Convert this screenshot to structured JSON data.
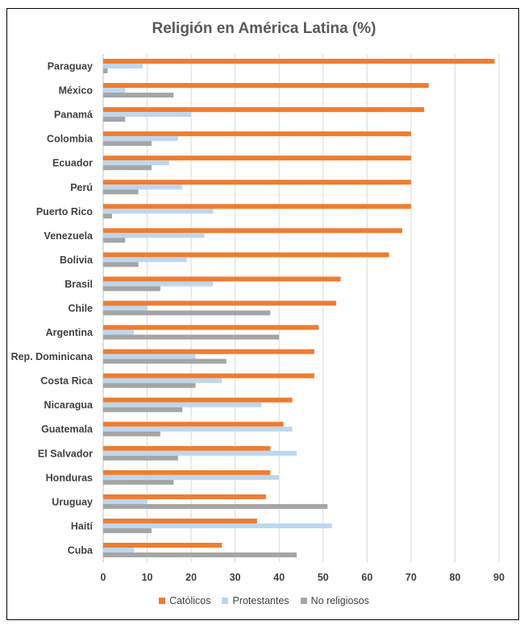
{
  "chart_data": {
    "type": "bar",
    "orientation": "horizontal",
    "title": "Religión en América Latina (%)",
    "xlabel": "",
    "ylabel": "",
    "xlim": [
      0,
      90
    ],
    "xticks": [
      0,
      10,
      20,
      30,
      40,
      50,
      60,
      70,
      80,
      90
    ],
    "grid": true,
    "legend_position": "bottom",
    "categories": [
      "Paraguay",
      "México",
      "Panamá",
      "Colombia",
      "Ecuador",
      "Perú",
      "Puerto Rico",
      "Venezuela",
      "Bolivia",
      "Brasil",
      "Chile",
      "Argentina",
      "Rep. Dominicana",
      "Costa Rica",
      "Nicaragua",
      "Guatemala",
      "El Salvador",
      "Honduras",
      "Uruguay",
      "Haití",
      "Cuba"
    ],
    "series": [
      {
        "name": "Católicos",
        "color": "#ed7d31",
        "values": [
          89,
          74,
          73,
          70,
          70,
          70,
          70,
          68,
          65,
          54,
          53,
          49,
          48,
          48,
          43,
          41,
          38,
          38,
          37,
          35,
          27
        ]
      },
      {
        "name": "Protestantes",
        "color": "#bdd7ee",
        "values": [
          9,
          5,
          20,
          17,
          15,
          18,
          25,
          23,
          19,
          25,
          10,
          7,
          21,
          27,
          36,
          43,
          44,
          40,
          10,
          52,
          7
        ]
      },
      {
        "name": "No religiosos",
        "color": "#a5a5a5",
        "values": [
          1,
          16,
          5,
          11,
          11,
          8,
          2,
          5,
          8,
          13,
          38,
          40,
          28,
          21,
          18,
          13,
          17,
          16,
          51,
          11,
          44
        ]
      }
    ]
  }
}
